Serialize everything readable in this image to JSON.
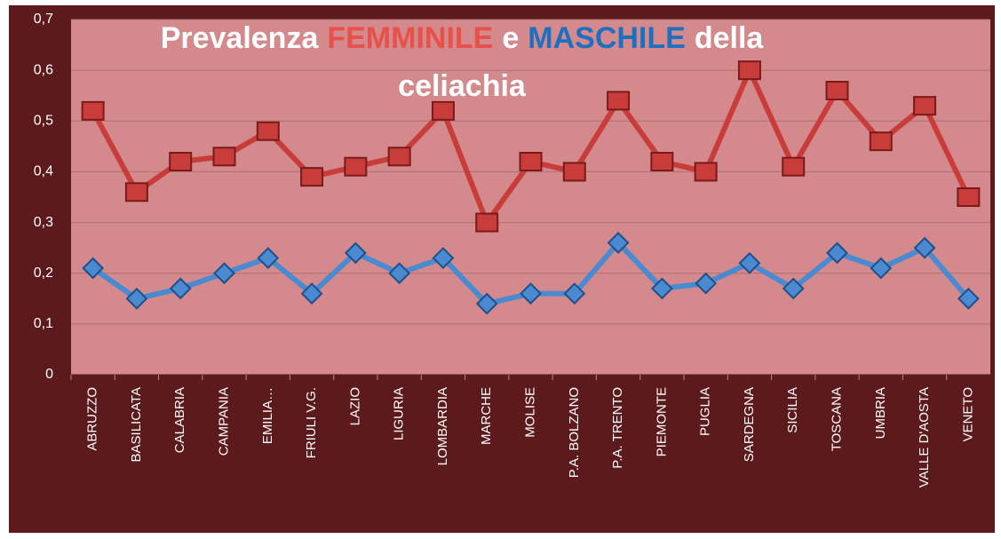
{
  "chart_data": {
    "type": "line",
    "title": [
      {
        "text": "Prevalenza",
        "color": "#ffffff"
      },
      {
        "text": "FEMMINILE",
        "color": "#e8504a"
      },
      {
        "text": "e",
        "color": "#ffffff"
      },
      {
        "text": "MASCHILE",
        "color": "#1f6fc0"
      },
      {
        "text": "della",
        "color": "#ffffff"
      },
      {
        "text": "celiachia",
        "color": "#ffffff"
      }
    ],
    "categories": [
      "ABRUZZO",
      "BASILICATA",
      "CALABRIA",
      "CAMPANIA",
      "EMILIA…",
      "FRIULI V.G.",
      "LAZIO",
      "LIGURIA",
      "LOMBARDIA",
      "MARCHE",
      "MOLISE",
      "P.A. BOLZANO",
      "P.A. TRENTO",
      "PIEMONTE",
      "PUGLIA",
      "SARDEGNA",
      "SICILIA",
      "TOSCANA",
      "UMBRIA",
      "VALLE D'AOSTA",
      "VENETO"
    ],
    "series": [
      {
        "color": "#c83c3a",
        "marker": "square",
        "values": [
          0.52,
          0.36,
          0.42,
          0.43,
          0.48,
          0.39,
          0.41,
          0.43,
          0.52,
          0.3,
          0.42,
          0.4,
          0.54,
          0.42,
          0.4,
          0.6,
          0.41,
          0.56,
          0.46,
          0.53,
          0.35
        ]
      },
      {
        "color": "#4a8ad0",
        "marker": "diamond",
        "values": [
          0.21,
          0.15,
          0.17,
          0.2,
          0.23,
          0.16,
          0.24,
          0.2,
          0.23,
          0.14,
          0.16,
          0.16,
          0.26,
          0.17,
          0.18,
          0.22,
          0.17,
          0.24,
          0.21,
          0.25,
          0.15
        ]
      }
    ],
    "ylim": [
      0,
      0.7
    ],
    "yticks": [
      0,
      {
        "value": 0.1,
        "label": "0,1"
      },
      {
        "value": 0.2,
        "label": "0,2"
      },
      {
        "value": 0.3,
        "label": "0,3"
      },
      {
        "value": 0.4,
        "label": "0,4"
      },
      {
        "value": 0.5,
        "label": "0,5"
      },
      {
        "value": 0.6,
        "label": "0,6"
      },
      {
        "value": 0.7,
        "label": "0,7"
      }
    ],
    "grid": true
  }
}
